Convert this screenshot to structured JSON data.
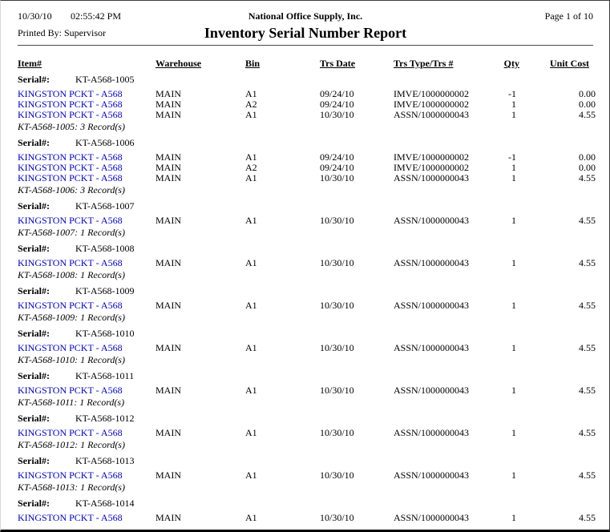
{
  "link_color": "#0000CC",
  "header": {
    "print_date": "10/30/10",
    "print_time": "02:55:42 PM",
    "printed_by": "Printed By: Supervisor",
    "company": "National Office Supply, Inc.",
    "title": "Inventory Serial Number Report",
    "page_info": "Page 1 of 10"
  },
  "table": {
    "columns": [
      "Item#",
      "Warehouse",
      "Bin",
      "Trs Date",
      "Trs Type/Trs #",
      "Qty",
      "Unit Cost"
    ],
    "serial_label": "Serial#:",
    "sections": [
      {
        "serial": "KT-A568-1005",
        "rows": [
          {
            "item": "KINGSTON PCKT - A568",
            "warehouse": "MAIN",
            "bin": "A1",
            "trs_date": "09/24/10",
            "trs_type": "IMVE/1000000002",
            "qty": "-1",
            "unit_cost": "0.00"
          },
          {
            "item": "KINGSTON PCKT - A568",
            "warehouse": "MAIN",
            "bin": "A2",
            "trs_date": "09/24/10",
            "trs_type": "IMVE/1000000002",
            "qty": "1",
            "unit_cost": "0.00"
          },
          {
            "item": "KINGSTON PCKT - A568",
            "warehouse": "MAIN",
            "bin": "A1",
            "trs_date": "10/30/10",
            "trs_type": "ASSN/1000000043",
            "qty": "1",
            "unit_cost": "4.55"
          }
        ],
        "summary": "KT-A568-1005: 3 Record(s)"
      },
      {
        "serial": "KT-A568-1006",
        "rows": [
          {
            "item": "KINGSTON PCKT - A568",
            "warehouse": "MAIN",
            "bin": "A1",
            "trs_date": "09/24/10",
            "trs_type": "IMVE/1000000002",
            "qty": "-1",
            "unit_cost": "0.00"
          },
          {
            "item": "KINGSTON PCKT - A568",
            "warehouse": "MAIN",
            "bin": "A2",
            "trs_date": "09/24/10",
            "trs_type": "IMVE/1000000002",
            "qty": "1",
            "unit_cost": "0.00"
          },
          {
            "item": "KINGSTON PCKT - A568",
            "warehouse": "MAIN",
            "bin": "A1",
            "trs_date": "10/30/10",
            "trs_type": "ASSN/1000000043",
            "qty": "1",
            "unit_cost": "4.55"
          }
        ],
        "summary": "KT-A568-1006: 3 Record(s)"
      },
      {
        "serial": "KT-A568-1007",
        "rows": [
          {
            "item": "KINGSTON PCKT - A568",
            "warehouse": "MAIN",
            "bin": "A1",
            "trs_date": "10/30/10",
            "trs_type": "ASSN/1000000043",
            "qty": "1",
            "unit_cost": "4.55"
          }
        ],
        "summary": "KT-A568-1007: 1 Record(s)"
      },
      {
        "serial": "KT-A568-1008",
        "rows": [
          {
            "item": "KINGSTON PCKT - A568",
            "warehouse": "MAIN",
            "bin": "A1",
            "trs_date": "10/30/10",
            "trs_type": "ASSN/1000000043",
            "qty": "1",
            "unit_cost": "4.55"
          }
        ],
        "summary": "KT-A568-1008: 1 Record(s)"
      },
      {
        "serial": "KT-A568-1009",
        "rows": [
          {
            "item": "KINGSTON PCKT - A568",
            "warehouse": "MAIN",
            "bin": "A1",
            "trs_date": "10/30/10",
            "trs_type": "ASSN/1000000043",
            "qty": "1",
            "unit_cost": "4.55"
          }
        ],
        "summary": "KT-A568-1009: 1 Record(s)"
      },
      {
        "serial": "KT-A568-1010",
        "rows": [
          {
            "item": "KINGSTON PCKT - A568",
            "warehouse": "MAIN",
            "bin": "A1",
            "trs_date": "10/30/10",
            "trs_type": "ASSN/1000000043",
            "qty": "1",
            "unit_cost": "4.55"
          }
        ],
        "summary": "KT-A568-1010: 1 Record(s)"
      },
      {
        "serial": "KT-A568-1011",
        "rows": [
          {
            "item": "KINGSTON PCKT - A568",
            "warehouse": "MAIN",
            "bin": "A1",
            "trs_date": "10/30/10",
            "trs_type": "ASSN/1000000043",
            "qty": "1",
            "unit_cost": "4.55"
          }
        ],
        "summary": "KT-A568-1011: 1 Record(s)"
      },
      {
        "serial": "KT-A568-1012",
        "rows": [
          {
            "item": "KINGSTON PCKT - A568",
            "warehouse": "MAIN",
            "bin": "A1",
            "trs_date": "10/30/10",
            "trs_type": "ASSN/1000000043",
            "qty": "1",
            "unit_cost": "4.55"
          }
        ],
        "summary": "KT-A568-1012: 1 Record(s)"
      },
      {
        "serial": "KT-A568-1013",
        "rows": [
          {
            "item": "KINGSTON PCKT - A568",
            "warehouse": "MAIN",
            "bin": "A1",
            "trs_date": "10/30/10",
            "trs_type": "ASSN/1000000043",
            "qty": "1",
            "unit_cost": "4.55"
          }
        ],
        "summary": "KT-A568-1013: 1 Record(s)"
      },
      {
        "serial": "KT-A568-1014",
        "rows": [
          {
            "item": "KINGSTON PCKT - A568",
            "warehouse": "MAIN",
            "bin": "A1",
            "trs_date": "10/30/10",
            "trs_type": "ASSN/1000000043",
            "qty": "1",
            "unit_cost": "4.55"
          }
        ]
      }
    ]
  }
}
